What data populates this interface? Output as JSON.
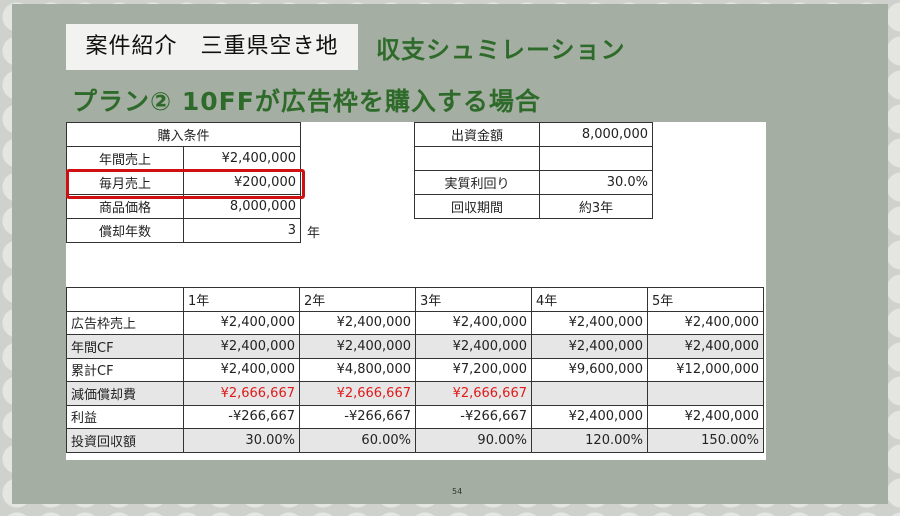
{
  "header": {
    "tag": "案件紹介　三重県空き地",
    "title": "収支シュミレーション",
    "subtitle": "プラン② 10FFが広告枠を購入する場合"
  },
  "purchase_conditions": {
    "heading": "購入条件",
    "rows": [
      {
        "label": "年間売上",
        "value": "¥2,400,000"
      },
      {
        "label": "毎月売上",
        "value": "¥200,000"
      },
      {
        "label": "商品価格",
        "value": "8,000,000"
      },
      {
        "label": "償却年数",
        "value": "3"
      }
    ],
    "year_unit": "年"
  },
  "investment": {
    "rows": [
      {
        "label": "出資金額",
        "value": "8,000,000"
      },
      {
        "label": "",
        "value": ""
      },
      {
        "label": "実質利回り",
        "value": "30.0%"
      },
      {
        "label": "回収期間",
        "value": "約3年"
      }
    ]
  },
  "yearly": {
    "headers": [
      "",
      "1年",
      "2年",
      "3年",
      "4年",
      "5年"
    ],
    "rows": [
      {
        "label": "広告枠売上",
        "values": [
          "¥2,400,000",
          "¥2,400,000",
          "¥2,400,000",
          "¥2,400,000",
          "¥2,400,000"
        ]
      },
      {
        "label": "年間CF",
        "values": [
          "¥2,400,000",
          "¥2,400,000",
          "¥2,400,000",
          "¥2,400,000",
          "¥2,400,000"
        ]
      },
      {
        "label": "累計CF",
        "values": [
          "¥2,400,000",
          "¥4,800,000",
          "¥7,200,000",
          "¥9,600,000",
          "¥12,000,000"
        ]
      },
      {
        "label": "減価償却費",
        "values": [
          "¥2,666,667",
          "¥2,666,667",
          "¥2,666,667",
          "",
          ""
        ]
      },
      {
        "label": "利益",
        "values": [
          "-¥266,667",
          "-¥266,667",
          "-¥266,667",
          "¥2,400,000",
          "¥2,400,000"
        ]
      },
      {
        "label": "投資回収額",
        "values": [
          "30.00%",
          "60.00%",
          "90.00%",
          "120.00%",
          "150.00%"
        ]
      }
    ]
  },
  "page_number": "54",
  "colors": {
    "title_green": "#2e6b2a",
    "highlight_red": "#d01010",
    "negative_red": "#e01a1a",
    "slide_bg": "#a5aea2"
  }
}
